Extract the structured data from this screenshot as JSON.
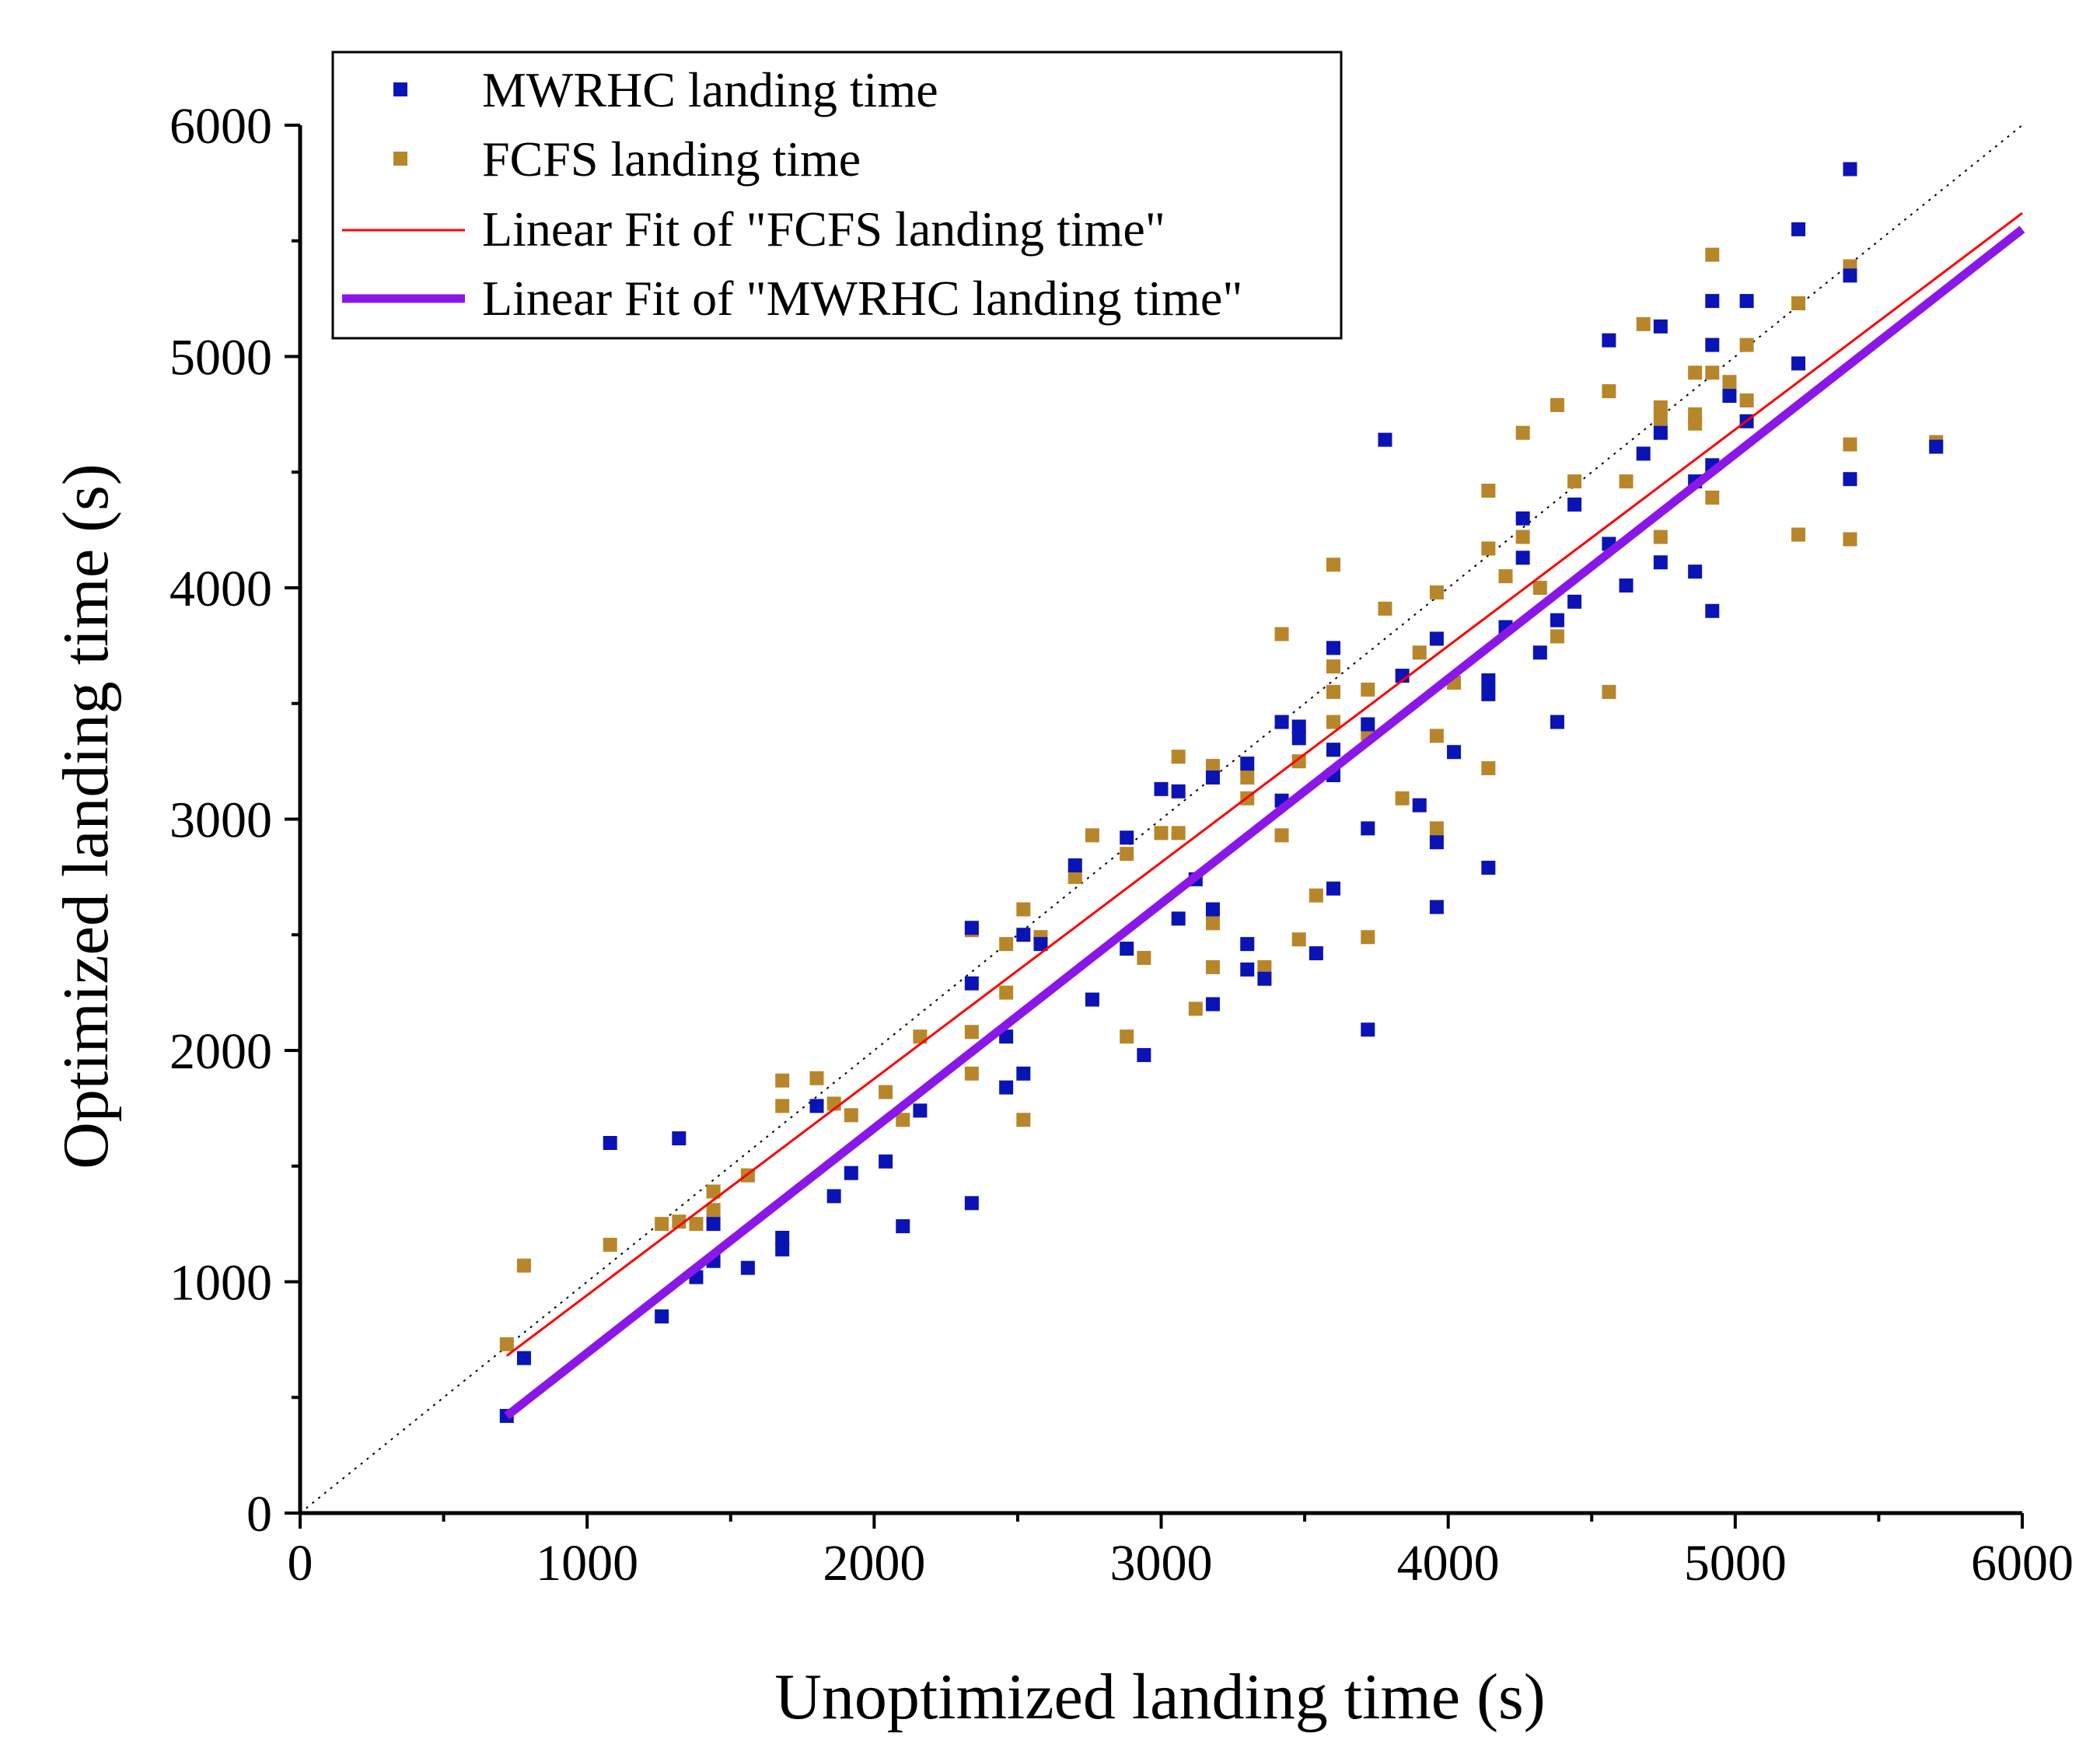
{
  "chart_data": {
    "type": "scatter",
    "title": "",
    "xlabel": "Unoptimized landing time (s)",
    "ylabel": "Optimized landing time (s)",
    "xlim": [
      0,
      6000
    ],
    "ylim": [
      0,
      6000
    ],
    "x_ticks": [
      0,
      1000,
      2000,
      3000,
      4000,
      5000,
      6000
    ],
    "y_ticks": [
      0,
      1000,
      2000,
      3000,
      4000,
      5000,
      6000
    ],
    "x_ticks_labels": [
      "0",
      "1000",
      "2000",
      "3000",
      "4000",
      "5000",
      "6000"
    ],
    "y_ticks_labels": [
      "0",
      "1000",
      "2000",
      "3000",
      "4000",
      "5000",
      "6000"
    ],
    "legend_position": "top-left",
    "colors": {
      "mwrhc": "#0a14b4",
      "fcfs": "#b8862a",
      "fit_fcfs": "#ff0000",
      "fit_mwrhc": "#8a17e8",
      "reference": "#000000"
    },
    "series": [
      {
        "name": "MWRHC landing time",
        "kind": "scatter",
        "points": [
          [
            720,
            420
          ],
          [
            780,
            670
          ],
          [
            1080,
            1600
          ],
          [
            1260,
            850
          ],
          [
            1320,
            1620
          ],
          [
            1380,
            1020
          ],
          [
            1440,
            1250
          ],
          [
            1440,
            1090
          ],
          [
            1560,
            1060
          ],
          [
            1680,
            1190
          ],
          [
            1680,
            1140
          ],
          [
            1800,
            1760
          ],
          [
            1860,
            1370
          ],
          [
            1920,
            1470
          ],
          [
            2040,
            1520
          ],
          [
            2100,
            1240
          ],
          [
            2160,
            1740
          ],
          [
            2340,
            2530
          ],
          [
            2340,
            2290
          ],
          [
            2340,
            1340
          ],
          [
            2460,
            2060
          ],
          [
            2460,
            1840
          ],
          [
            2520,
            2500
          ],
          [
            2520,
            1900
          ],
          [
            2580,
            2460
          ],
          [
            2700,
            2800
          ],
          [
            2760,
            2220
          ],
          [
            2880,
            2920
          ],
          [
            2880,
            2440
          ],
          [
            2940,
            1980
          ],
          [
            3000,
            3130
          ],
          [
            3060,
            3120
          ],
          [
            3060,
            2570
          ],
          [
            3120,
            2740
          ],
          [
            3180,
            3180
          ],
          [
            3180,
            2610
          ],
          [
            3180,
            2200
          ],
          [
            3300,
            3240
          ],
          [
            3300,
            2460
          ],
          [
            3300,
            2350
          ],
          [
            3360,
            2310
          ],
          [
            3420,
            3420
          ],
          [
            3420,
            3080
          ],
          [
            3480,
            3400
          ],
          [
            3480,
            3350
          ],
          [
            3540,
            2420
          ],
          [
            3600,
            3740
          ],
          [
            3600,
            3300
          ],
          [
            3600,
            3190
          ],
          [
            3600,
            2700
          ],
          [
            3720,
            3410
          ],
          [
            3720,
            2960
          ],
          [
            3720,
            2090
          ],
          [
            3780,
            4640
          ],
          [
            3840,
            3620
          ],
          [
            3900,
            3060
          ],
          [
            3960,
            3780
          ],
          [
            3960,
            2900
          ],
          [
            3960,
            2620
          ],
          [
            4020,
            3290
          ],
          [
            4140,
            3600
          ],
          [
            4140,
            3540
          ],
          [
            4140,
            2790
          ],
          [
            4200,
            3830
          ],
          [
            4260,
            4300
          ],
          [
            4260,
            4130
          ],
          [
            4320,
            3720
          ],
          [
            4380,
            3860
          ],
          [
            4380,
            3420
          ],
          [
            4440,
            4360
          ],
          [
            4440,
            3940
          ],
          [
            4560,
            5070
          ],
          [
            4560,
            4190
          ],
          [
            4620,
            4010
          ],
          [
            4680,
            4580
          ],
          [
            4740,
            5130
          ],
          [
            4740,
            4670
          ],
          [
            4740,
            4110
          ],
          [
            4860,
            4460
          ],
          [
            4860,
            4070
          ],
          [
            4920,
            5240
          ],
          [
            4920,
            5050
          ],
          [
            4920,
            4530
          ],
          [
            4920,
            3900
          ],
          [
            4980,
            4830
          ],
          [
            5040,
            5240
          ],
          [
            5040,
            4720
          ],
          [
            5220,
            5550
          ],
          [
            5220,
            4970
          ],
          [
            5400,
            5810
          ],
          [
            5400,
            5350
          ],
          [
            5400,
            4470
          ],
          [
            5700,
            4610
          ]
        ]
      },
      {
        "name": "FCFS landing time",
        "kind": "scatter",
        "points": [
          [
            720,
            730
          ],
          [
            780,
            1070
          ],
          [
            1080,
            1160
          ],
          [
            1260,
            1250
          ],
          [
            1320,
            1260
          ],
          [
            1380,
            1250
          ],
          [
            1440,
            1390
          ],
          [
            1440,
            1310
          ],
          [
            1560,
            1460
          ],
          [
            1680,
            1870
          ],
          [
            1680,
            1760
          ],
          [
            1800,
            1880
          ],
          [
            1860,
            1770
          ],
          [
            1920,
            1720
          ],
          [
            2040,
            1820
          ],
          [
            2100,
            1700
          ],
          [
            2160,
            2060
          ],
          [
            2340,
            2520
          ],
          [
            2340,
            2080
          ],
          [
            2340,
            1900
          ],
          [
            2460,
            2460
          ],
          [
            2460,
            2250
          ],
          [
            2520,
            2610
          ],
          [
            2520,
            1700
          ],
          [
            2580,
            2490
          ],
          [
            2700,
            2750
          ],
          [
            2760,
            2930
          ],
          [
            2880,
            2850
          ],
          [
            2880,
            2060
          ],
          [
            2940,
            2400
          ],
          [
            3000,
            2940
          ],
          [
            3060,
            3270
          ],
          [
            3060,
            2940
          ],
          [
            3120,
            2180
          ],
          [
            3180,
            3230
          ],
          [
            3180,
            2550
          ],
          [
            3180,
            2360
          ],
          [
            3300,
            3180
          ],
          [
            3300,
            3090
          ],
          [
            3360,
            2360
          ],
          [
            3420,
            3800
          ],
          [
            3420,
            2930
          ],
          [
            3480,
            3250
          ],
          [
            3480,
            2480
          ],
          [
            3540,
            2670
          ],
          [
            3600,
            4100
          ],
          [
            3600,
            3660
          ],
          [
            3600,
            3550
          ],
          [
            3600,
            3420
          ],
          [
            3600,
            3300
          ],
          [
            3720,
            3560
          ],
          [
            3720,
            3370
          ],
          [
            3720,
            2490
          ],
          [
            3780,
            3910
          ],
          [
            3840,
            3090
          ],
          [
            3900,
            3720
          ],
          [
            3960,
            3980
          ],
          [
            3960,
            3360
          ],
          [
            3960,
            2960
          ],
          [
            4020,
            3590
          ],
          [
            4140,
            4420
          ],
          [
            4140,
            4170
          ],
          [
            4140,
            3220
          ],
          [
            4200,
            4050
          ],
          [
            4260,
            4670
          ],
          [
            4260,
            4220
          ],
          [
            4320,
            4000
          ],
          [
            4380,
            4790
          ],
          [
            4380,
            3790
          ],
          [
            4440,
            4460
          ],
          [
            4560,
            4850
          ],
          [
            4560,
            3550
          ],
          [
            4620,
            4460
          ],
          [
            4680,
            5140
          ],
          [
            4740,
            4780
          ],
          [
            4740,
            4730
          ],
          [
            4740,
            4220
          ],
          [
            4860,
            4930
          ],
          [
            4860,
            4750
          ],
          [
            4860,
            4710
          ],
          [
            4920,
            5440
          ],
          [
            4920,
            4930
          ],
          [
            4920,
            4390
          ],
          [
            4980,
            4890
          ],
          [
            5040,
            5050
          ],
          [
            5040,
            4810
          ],
          [
            5220,
            5230
          ],
          [
            5220,
            4230
          ],
          [
            5400,
            5390
          ],
          [
            5400,
            4620
          ],
          [
            5400,
            4210
          ],
          [
            5700,
            4630
          ]
        ]
      },
      {
        "name": "Linear Fit of \"FCFS landing time\"",
        "kind": "line",
        "points": [
          [
            720,
            680
          ],
          [
            6000,
            5620
          ]
        ]
      },
      {
        "name": "Linear Fit of \"MWRHC landing time\"",
        "kind": "line",
        "points": [
          [
            720,
            420
          ],
          [
            6000,
            5550
          ]
        ]
      },
      {
        "name": "y = x reference",
        "kind": "reference",
        "points": [
          [
            0,
            0
          ],
          [
            6000,
            6000
          ]
        ]
      }
    ]
  }
}
